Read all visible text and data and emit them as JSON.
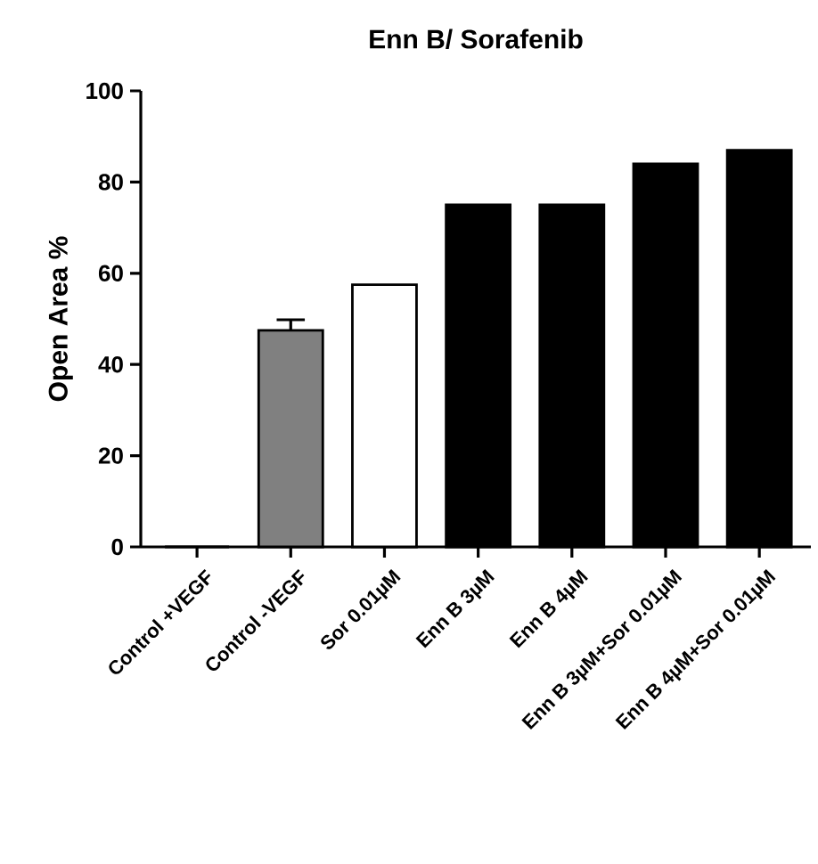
{
  "chart_data": {
    "type": "bar",
    "title": "Enn B/ Sorafenib",
    "ylabel": "Open Area %",
    "categories": [
      "Control +VEGF",
      "Control -VEGF",
      "Sor 0.01µM",
      "Enn B 3µM",
      "Enn B 4µM",
      "Enn B 3µM+Sor 0.01µM",
      "Enn B 4µM+Sor 0.01µM"
    ],
    "values": [
      0,
      47.5,
      57.5,
      75,
      75,
      84,
      87
    ],
    "colors": [
      "#ffffff",
      "#808080",
      "#ffffff",
      "#000000",
      "#000000",
      "#000000",
      "#000000"
    ],
    "errors": [
      null,
      [
        47.5,
        49.8
      ],
      null,
      null,
      null,
      null,
      null
    ],
    "ylim": [
      0,
      100
    ],
    "yticks": [
      0,
      20,
      40,
      60,
      80,
      100
    ],
    "grid": false
  }
}
